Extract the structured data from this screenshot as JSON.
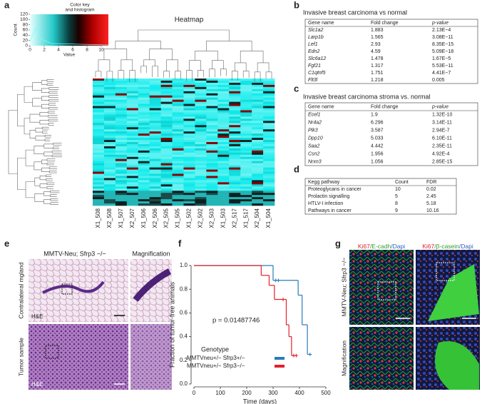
{
  "figure": {
    "panels": {
      "a": "a",
      "b": "b",
      "c": "c",
      "d": "d",
      "e": "e",
      "f": "f",
      "g": "g"
    },
    "heatmap": {
      "title": "Heatmap",
      "columns": [
        "X1_508",
        "X2_508",
        "X1_507",
        "X2_507",
        "X1_506",
        "X2_506",
        "X2_505",
        "X1_505",
        "X1_502",
        "X2_502",
        "X2_503",
        "X1_503",
        "X2_517",
        "X1_517",
        "X2_504",
        "X1_504"
      ],
      "color_key": {
        "title": [
          "Color key",
          "and histogram"
        ],
        "xlabel": "Value",
        "ylabel": "Count",
        "xlim": [
          0,
          11
        ],
        "xticks": [
          0,
          2,
          4,
          6,
          8,
          10
        ],
        "ylim": [
          0,
          120
        ],
        "yticks": [
          0,
          20,
          40,
          60,
          80,
          100,
          120
        ]
      }
    },
    "table_b": {
      "title": "Invasive breast carcinoma vs normal",
      "header": [
        "Gene name",
        "Fold change",
        "p-value"
      ],
      "rows": [
        [
          "Slc1a2",
          "1.883",
          "2.13E−4"
        ],
        [
          "Larp1b",
          "1.565",
          "3.08E−11"
        ],
        [
          "Lef1",
          "2.93",
          "8.35E−15"
        ],
        [
          "Edn2",
          "4.59",
          "5.09E−18"
        ],
        [
          "Slc6a12",
          "1.478",
          "1.67E−5"
        ],
        [
          "Fgf21",
          "1.317",
          "5.53E−11"
        ],
        [
          "C1qtnf5",
          "1.751",
          "4.41E−7"
        ],
        [
          "Flt3l",
          "1.218",
          "0.005"
        ]
      ]
    },
    "table_c": {
      "title": "Invasive breast carcinoma stroma vs. normal",
      "header": [
        "Gene name",
        "Fold change",
        "p-value"
      ],
      "rows": [
        [
          "Ecel1",
          "1.9",
          "1.32E-10"
        ],
        [
          "Nr4a2",
          "6.296",
          "3.14E-11"
        ],
        [
          "Plk3",
          "3.587",
          "2.94E-7"
        ],
        [
          "Dpp10",
          "5.033",
          "6.10E-11"
        ],
        [
          "Saa2",
          "4.442",
          "2.35E-11"
        ],
        [
          "Csn2",
          "1.956",
          "4.92E-4"
        ],
        [
          "Nrxn3",
          "1.056",
          "2.85E-15"
        ]
      ]
    },
    "table_d": {
      "header": [
        "Kegg pathway",
        "Count",
        "FDR"
      ],
      "rows": [
        [
          "Proteoglycans in cancer",
          "10",
          "0.02"
        ],
        [
          "Prolactin signalling",
          "5",
          "2.45"
        ],
        [
          "HTLV-I infection",
          "8",
          "5.18"
        ],
        [
          "Pathways in cancer",
          "9",
          "10.16"
        ]
      ]
    },
    "histology": {
      "title": "MMTV-Neu; Sfrp3 −/−",
      "magnification": "Magnification",
      "rows": [
        "Contralateral mgland",
        "Tumor sample"
      ],
      "stain": "H&E"
    },
    "immunofluorescence": {
      "stains": [
        [
          "Ki67",
          "/E-cadh",
          "/Dapi"
        ],
        [
          "Ki67",
          "/β-casein",
          "/Dapi"
        ]
      ],
      "side_label": "MMTV-Neu; Sfrp3 −/−",
      "magnification": "Magnification"
    }
  },
  "chart_data": {
    "type": "survival",
    "xlabel": "Time (days)",
    "ylabel": "Fraction of tumor-free animals",
    "annotation": "p = 0.01487746",
    "xlim": [
      0,
      500
    ],
    "xticks": [
      0,
      100,
      200,
      300,
      400,
      500
    ],
    "ylim": [
      0,
      1
    ],
    "yticks": [
      {
        "value": 0,
        "label": "0.0"
      },
      {
        "value": 0.2,
        "label": "0.2"
      },
      {
        "value": 0.4,
        "label": "0.4"
      },
      {
        "value": 0.6,
        "label": "0.6"
      },
      {
        "value": 0.8,
        "label": "0.8"
      },
      {
        "value": 1,
        "label": "1.0"
      }
    ],
    "legend_title": "Genotype",
    "legend": "lower left",
    "series": [
      {
        "name": "MMTVneu+/− Sfrp3+/−",
        "color": "#2b7bb9",
        "x": [
          0,
          300,
          395,
          410,
          430
        ],
        "values": [
          1,
          0.875,
          0.75,
          0.5,
          0.25
        ],
        "censor_x": [
          310,
          320,
          440
        ],
        "censor_values": [
          0.875,
          0.875,
          0.25
        ]
      },
      {
        "name": "MMTVneu+/− Sfrp3−/−",
        "color": "#e3202b",
        "x": [
          0,
          255,
          285,
          305,
          350,
          360,
          370
        ],
        "values": [
          1,
          0.917,
          0.833,
          0.714,
          0.5,
          0.4,
          0.24
        ],
        "censor_x": [
          338,
          378,
          388
        ],
        "censor_values": [
          0.714,
          0.24,
          0.24
        ]
      }
    ]
  }
}
